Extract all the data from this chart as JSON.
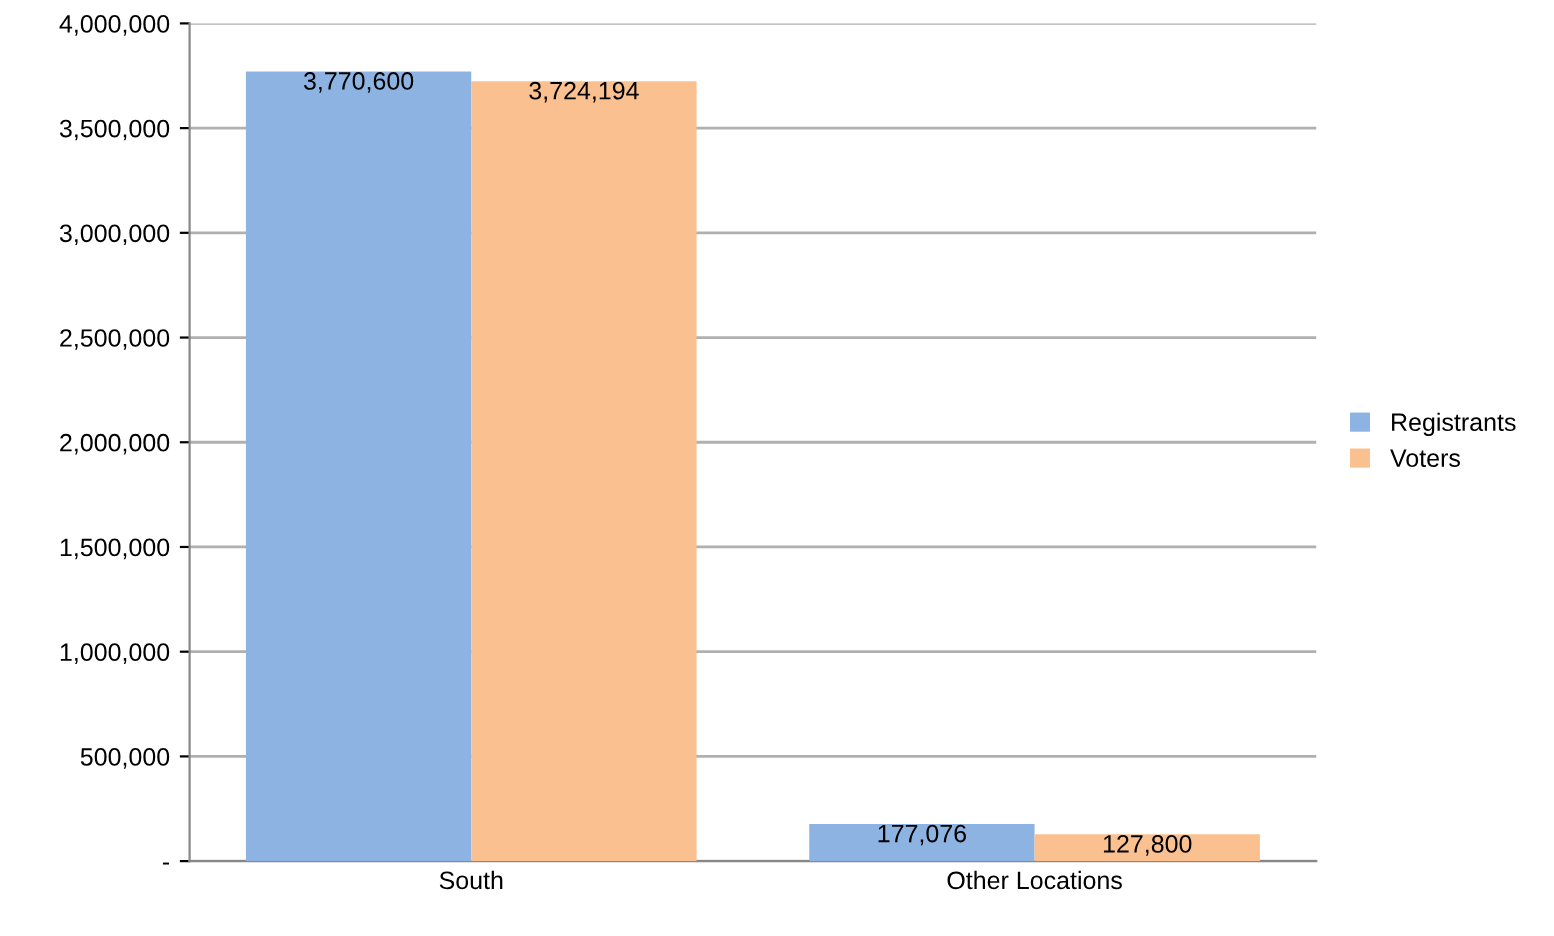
{
  "chart_data": {
    "type": "bar",
    "categories": [
      "South",
      "Other Locations"
    ],
    "series": [
      {
        "name": "Registrants",
        "color": "#8db3e2",
        "values": [
          3770600,
          177076
        ],
        "value_labels": [
          "3,770,600",
          "177,076"
        ]
      },
      {
        "name": "Voters",
        "color": "#fac08f",
        "values": [
          3724194,
          127800
        ],
        "value_labels": [
          "3,724,194",
          "127,800"
        ]
      }
    ],
    "ylim": [
      0,
      4000000
    ],
    "yticks": [
      {
        "value": 0,
        "label": "-"
      },
      {
        "value": 500000,
        "label": "500,000"
      },
      {
        "value": 1000000,
        "label": "1,000,000"
      },
      {
        "value": 1500000,
        "label": "1,500,000"
      },
      {
        "value": 2000000,
        "label": "2,000,000"
      },
      {
        "value": 2500000,
        "label": "2,500,000"
      },
      {
        "value": 3000000,
        "label": "3,000,000"
      },
      {
        "value": 3500000,
        "label": "3,500,000"
      },
      {
        "value": 4000000,
        "label": "4,000,000"
      }
    ],
    "grid": "y",
    "legend": "right"
  }
}
